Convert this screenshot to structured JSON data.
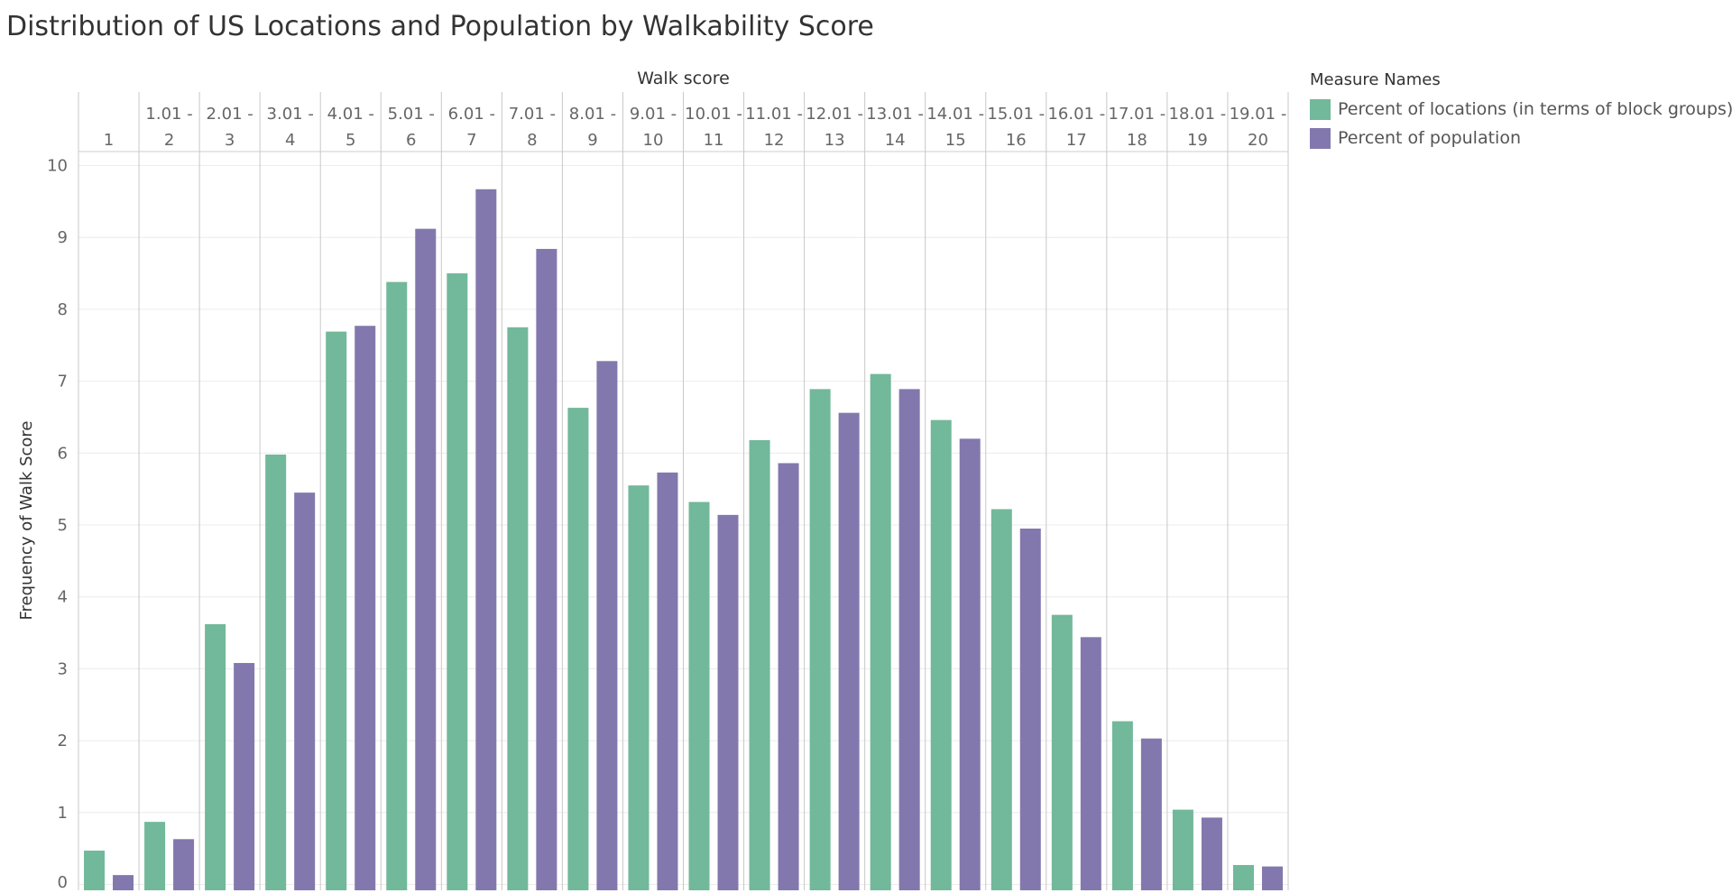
{
  "title": "Distribution of US Locations and Population by Walkability Score",
  "colors": {
    "locations": "#72b89a",
    "population": "#8378ad"
  },
  "legend": {
    "title": "Measure Names",
    "items": [
      {
        "label": "Percent of locations (in terms of block groups)",
        "color": "#72b89a"
      },
      {
        "label": "Percent of population",
        "color": "#8378ad"
      }
    ]
  },
  "chart_data": {
    "type": "bar",
    "title": "Distribution of US Locations and Population by Walkability Score",
    "xlabel": "Walk score",
    "ylabel": "Frequency of Walk Score",
    "ylim": [
      0,
      10
    ],
    "yticks": [
      0,
      1,
      2,
      3,
      4,
      5,
      6,
      7,
      8,
      9,
      10
    ],
    "grid": true,
    "legend_position": "right",
    "categories": [
      [
        "",
        "1"
      ],
      [
        "1.01 -",
        "2"
      ],
      [
        "2.01 -",
        "3"
      ],
      [
        "3.01 -",
        "4"
      ],
      [
        "4.01 -",
        "5"
      ],
      [
        "5.01 -",
        "6"
      ],
      [
        "6.01 -",
        "7"
      ],
      [
        "7.01 -",
        "8"
      ],
      [
        "8.01 -",
        "9"
      ],
      [
        "9.01 -",
        "10"
      ],
      [
        "10.01 -",
        "11"
      ],
      [
        "11.01 -",
        "12"
      ],
      [
        "12.01 -",
        "13"
      ],
      [
        "13.01 -",
        "14"
      ],
      [
        "14.01 -",
        "15"
      ],
      [
        "15.01 -",
        "16"
      ],
      [
        "16.01 -",
        "17"
      ],
      [
        "17.01 -",
        "18"
      ],
      [
        "18.01 -",
        "19"
      ],
      [
        "19.01 -",
        "20"
      ]
    ],
    "series": [
      {
        "name": "Percent of locations (in terms of block groups)",
        "values": [
          0.47,
          0.87,
          3.62,
          5.98,
          7.69,
          8.38,
          8.5,
          7.75,
          6.63,
          5.55,
          5.32,
          6.18,
          6.89,
          7.1,
          6.46,
          5.22,
          3.75,
          2.27,
          1.04,
          0.27
        ]
      },
      {
        "name": "Percent of population",
        "values": [
          0.13,
          0.63,
          3.08,
          5.45,
          7.77,
          9.12,
          9.67,
          8.84,
          7.28,
          5.73,
          5.14,
          5.86,
          6.56,
          6.89,
          6.2,
          4.95,
          3.44,
          2.03,
          0.93,
          0.25
        ]
      }
    ]
  }
}
